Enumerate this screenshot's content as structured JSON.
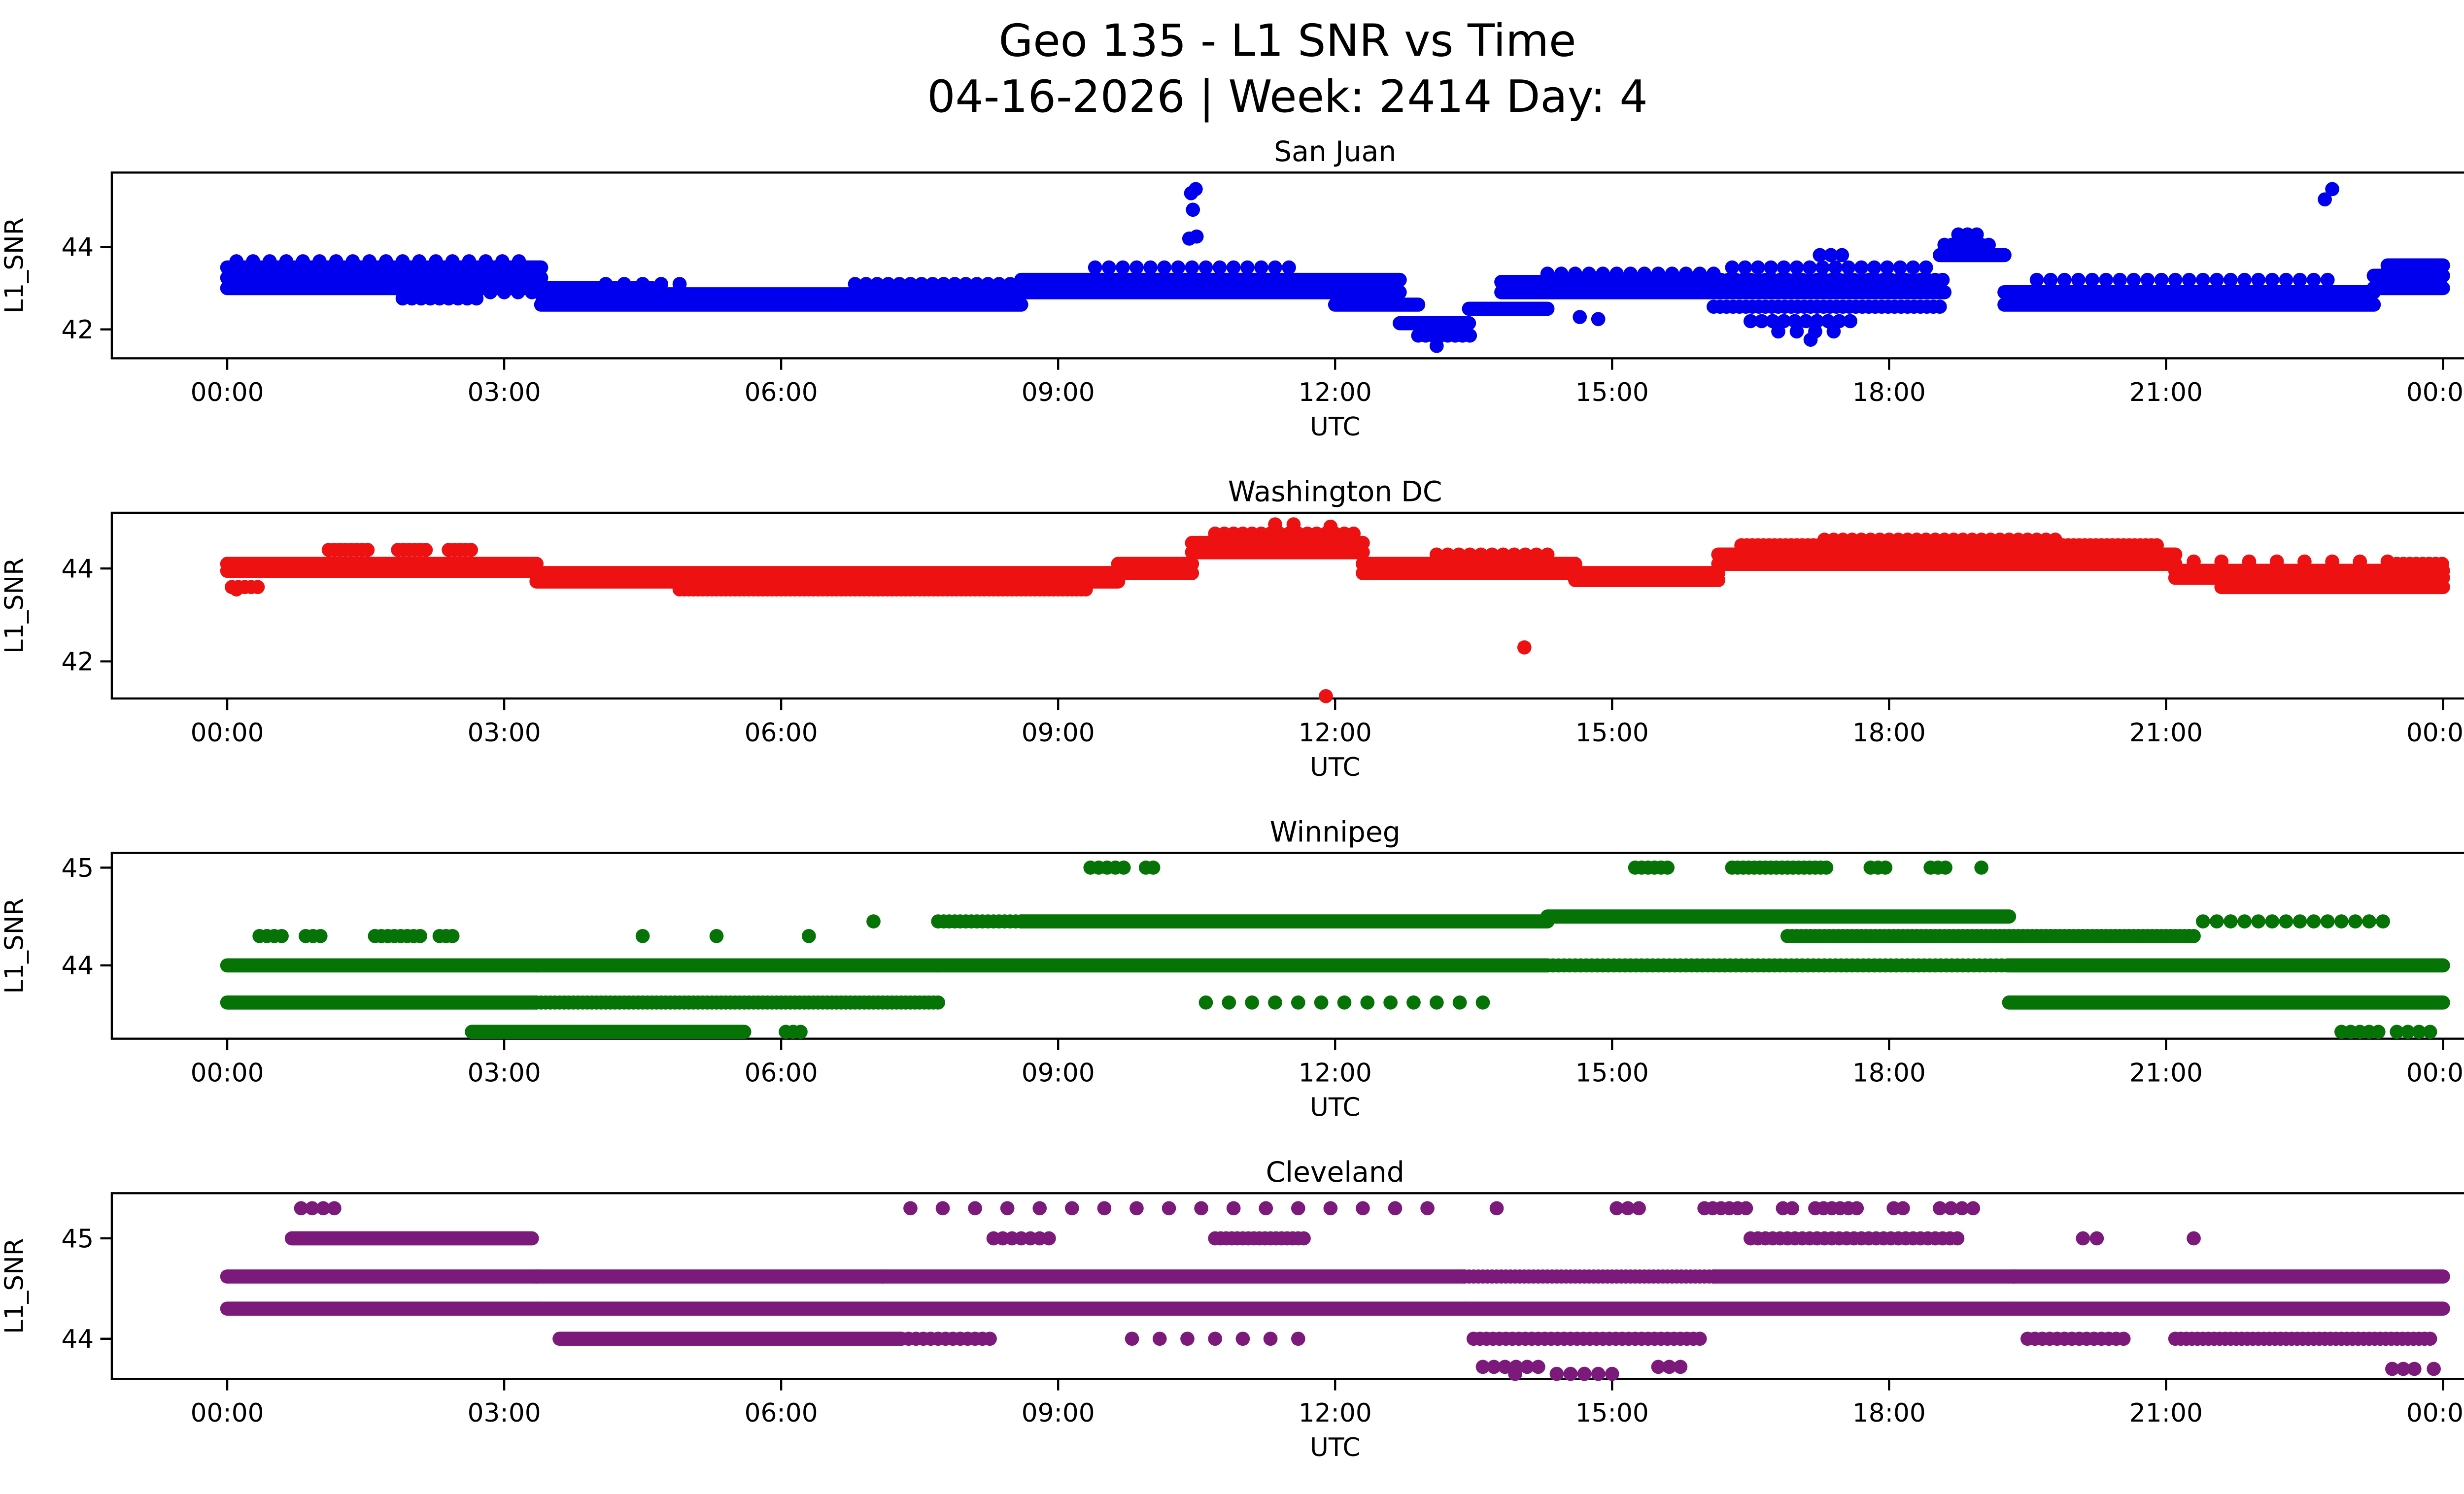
{
  "figure": {
    "title": "Geo 135 - L1 SNR vs Time",
    "subtitle": "04-16-2026 | Week: 2414 Day: 4"
  },
  "chart_data": [
    {
      "type": "scatter",
      "title": "San Juan",
      "color": "#0000ee",
      "xlabel": "UTC",
      "ylabel": "L1_SNR",
      "xlim": [
        -1.25,
        25.25
      ],
      "ylim": [
        41.3,
        45.8
      ],
      "yticks": [
        42,
        44
      ],
      "xticks": [
        0,
        3,
        6,
        9,
        12,
        15,
        18,
        21,
        24
      ],
      "xtick_labels": [
        "00:00",
        "03:00",
        "06:00",
        "09:00",
        "12:00",
        "15:00",
        "18:00",
        "21:00",
        "00:00"
      ],
      "segments": [
        [
          0.0,
          3.4,
          43.5
        ],
        [
          0.0,
          3.4,
          43.25
        ],
        [
          0.0,
          4.6,
          43.0
        ],
        [
          0.1,
          3.2,
          43.65,
          0.18
        ],
        [
          1.9,
          2.7,
          42.75,
          0.1
        ],
        [
          2.1,
          3.4,
          42.9,
          0.15
        ],
        [
          3.4,
          8.6,
          42.6
        ],
        [
          3.4,
          8.6,
          42.85
        ],
        [
          4.1,
          5.0,
          43.1,
          0.2
        ],
        [
          6.8,
          8.6,
          43.1,
          0.12
        ],
        [
          8.6,
          12.7,
          43.2
        ],
        [
          8.6,
          12.7,
          42.9
        ],
        [
          9.4,
          11.6,
          43.5,
          0.15
        ],
        [
          12.0,
          12.9,
          42.6
        ],
        [
          12.7,
          13.45,
          42.15
        ],
        [
          12.9,
          13.5,
          41.85,
          0.08
        ],
        [
          13.45,
          14.3,
          42.5
        ],
        [
          13.8,
          16.1,
          42.9
        ],
        [
          13.8,
          16.1,
          43.15
        ],
        [
          14.3,
          16.1,
          43.35,
          0.15
        ],
        [
          16.1,
          18.6,
          42.9
        ],
        [
          16.1,
          18.6,
          42.55,
          0.07
        ],
        [
          16.1,
          18.6,
          43.2,
          0.08
        ],
        [
          16.3,
          18.4,
          43.5,
          0.14
        ],
        [
          16.5,
          17.6,
          42.2,
          0.12
        ],
        [
          16.8,
          17.4,
          41.95,
          0.2
        ],
        [
          17.25,
          17.55,
          43.8,
          0.12
        ],
        [
          18.55,
          19.25,
          43.8
        ],
        [
          18.6,
          19.15,
          44.05,
          0.08
        ],
        [
          18.75,
          19.0,
          44.3,
          0.1
        ],
        [
          19.25,
          23.25,
          42.9
        ],
        [
          19.25,
          23.25,
          42.6
        ],
        [
          19.6,
          22.8,
          43.2,
          0.15
        ],
        [
          23.25,
          24.0,
          43.0
        ],
        [
          23.25,
          24.0,
          43.3
        ],
        [
          23.4,
          24.0,
          43.55
        ]
      ],
      "points": [
        [
          10.42,
          44.2
        ],
        [
          10.5,
          44.25
        ],
        [
          10.46,
          44.9
        ],
        [
          10.44,
          45.3
        ],
        [
          10.49,
          45.4
        ],
        [
          22.72,
          45.15
        ],
        [
          22.8,
          45.4
        ],
        [
          13.1,
          41.6
        ],
        [
          17.15,
          41.75
        ],
        [
          14.65,
          42.3
        ],
        [
          14.85,
          42.25
        ]
      ]
    },
    {
      "type": "scatter",
      "title": "Washington DC",
      "color": "#ee1111",
      "xlabel": "UTC",
      "ylabel": "L1_SNR",
      "xlim": [
        -1.25,
        25.25
      ],
      "ylim": [
        41.2,
        45.2
      ],
      "yticks": [
        42,
        44
      ],
      "xticks": [
        0,
        3,
        6,
        9,
        12,
        15,
        18,
        21,
        24
      ],
      "xtick_labels": [
        "00:00",
        "03:00",
        "06:00",
        "09:00",
        "12:00",
        "15:00",
        "18:00",
        "21:00",
        "00:00"
      ],
      "segments": [
        [
          0.0,
          3.35,
          44.1
        ],
        [
          0.0,
          3.35,
          43.95
        ],
        [
          0.05,
          0.35,
          43.6,
          0.07
        ],
        [
          1.1,
          1.55,
          44.4,
          0.06
        ],
        [
          1.85,
          2.2,
          44.4,
          0.06
        ],
        [
          2.4,
          2.65,
          44.4,
          0.06
        ],
        [
          3.35,
          9.65,
          43.9
        ],
        [
          3.35,
          9.65,
          43.72
        ],
        [
          4.9,
          9.3,
          43.55,
          0.05
        ],
        [
          9.65,
          10.45,
          44.1
        ],
        [
          9.65,
          10.45,
          43.9
        ],
        [
          10.45,
          12.3,
          44.55
        ],
        [
          10.45,
          12.3,
          44.35
        ],
        [
          10.7,
          12.2,
          44.75,
          0.1
        ],
        [
          12.3,
          14.6,
          44.1
        ],
        [
          12.3,
          14.6,
          43.9
        ],
        [
          13.1,
          14.4,
          44.3,
          0.12
        ],
        [
          14.6,
          16.15,
          43.9
        ],
        [
          14.6,
          16.15,
          43.75
        ],
        [
          16.15,
          21.1,
          44.3
        ],
        [
          16.15,
          21.1,
          44.1
        ],
        [
          16.4,
          20.9,
          44.5,
          0.06
        ],
        [
          17.3,
          19.8,
          44.62,
          0.1
        ],
        [
          21.1,
          24.0,
          43.95
        ],
        [
          21.1,
          24.0,
          43.8
        ],
        [
          21.6,
          24.0,
          43.6
        ],
        [
          21.3,
          23.5,
          44.15,
          0.3
        ],
        [
          23.5,
          24.0,
          44.1,
          0.07
        ]
      ],
      "points": [
        [
          11.35,
          44.95
        ],
        [
          11.55,
          44.95
        ],
        [
          11.95,
          44.9
        ],
        [
          11.9,
          41.25
        ],
        [
          14.05,
          42.3
        ],
        [
          0.1,
          43.55
        ]
      ]
    },
    {
      "type": "scatter",
      "title": "Winnipeg",
      "color": "#067306",
      "xlabel": "UTC",
      "ylabel": "L1_SNR",
      "xlim": [
        -1.25,
        25.25
      ],
      "ylim": [
        43.25,
        45.15
      ],
      "yticks": [
        44,
        45
      ],
      "xticks": [
        0,
        3,
        6,
        9,
        12,
        15,
        18,
        21,
        24
      ],
      "xtick_labels": [
        "00:00",
        "03:00",
        "06:00",
        "09:00",
        "12:00",
        "15:00",
        "18:00",
        "21:00",
        "00:00"
      ],
      "segments": [
        [
          0.0,
          3.35,
          44.0
        ],
        [
          0.0,
          3.35,
          43.62
        ],
        [
          0.35,
          0.6,
          44.3,
          0.08
        ],
        [
          0.85,
          1.05,
          44.3,
          0.08
        ],
        [
          1.6,
          2.1,
          44.3,
          0.07
        ],
        [
          2.3,
          2.45,
          44.3,
          0.07
        ],
        [
          2.65,
          5.6,
          43.32
        ],
        [
          3.35,
          7.7,
          44.0
        ],
        [
          3.35,
          7.7,
          43.62,
          0.05
        ],
        [
          6.05,
          6.25,
          43.32,
          0.08
        ],
        [
          7.7,
          14.3,
          44.0
        ],
        [
          7.7,
          8.6,
          44.45,
          0.06
        ],
        [
          8.6,
          14.3,
          44.45
        ],
        [
          9.35,
          9.75,
          45.0,
          0.09
        ],
        [
          9.95,
          10.1,
          45.0,
          0.08
        ],
        [
          10.6,
          13.6,
          43.62,
          0.25
        ],
        [
          14.3,
          19.3,
          44.5
        ],
        [
          14.3,
          19.3,
          44.0,
          0.06
        ],
        [
          15.25,
          15.65,
          45.0,
          0.07
        ],
        [
          16.3,
          17.35,
          45.0,
          0.06
        ],
        [
          17.8,
          18.0,
          45.0,
          0.08
        ],
        [
          18.45,
          18.65,
          45.0,
          0.08
        ],
        [
          16.9,
          21.3,
          44.3,
          0.05
        ],
        [
          19.3,
          24.0,
          44.0
        ],
        [
          19.3,
          24.0,
          43.62
        ],
        [
          21.4,
          23.4,
          44.45,
          0.15
        ],
        [
          22.9,
          23.3,
          43.32,
          0.1
        ],
        [
          23.5,
          23.9,
          43.32,
          0.12
        ]
      ],
      "points": [
        [
          4.5,
          44.3
        ],
        [
          5.3,
          44.3
        ],
        [
          6.3,
          44.3
        ],
        [
          7.0,
          44.45
        ],
        [
          19.0,
          45.0
        ]
      ]
    },
    {
      "type": "scatter",
      "title": "Cleveland",
      "color": "#7c1a7c",
      "xlabel": "UTC",
      "ylabel": "L1_SNR",
      "xlim": [
        -1.25,
        25.25
      ],
      "ylim": [
        43.6,
        45.45
      ],
      "yticks": [
        44,
        45
      ],
      "xticks": [
        0,
        3,
        6,
        9,
        12,
        15,
        18,
        21,
        24
      ],
      "xtick_labels": [
        "00:00",
        "03:00",
        "06:00",
        "09:00",
        "12:00",
        "15:00",
        "18:00",
        "21:00",
        "00:00"
      ],
      "segments": [
        [
          0.0,
          3.35,
          44.62
        ],
        [
          0.0,
          3.35,
          44.3
        ],
        [
          0.7,
          3.3,
          45.0
        ],
        [
          0.8,
          1.2,
          45.3,
          0.12
        ],
        [
          3.35,
          7.1,
          44.62
        ],
        [
          3.35,
          7.1,
          44.3
        ],
        [
          3.6,
          7.3,
          44.0
        ],
        [
          7.1,
          13.4,
          44.62
        ],
        [
          7.1,
          13.4,
          44.3
        ],
        [
          7.3,
          8.3,
          44.0,
          0.08
        ],
        [
          7.4,
          13.2,
          45.3,
          0.35
        ],
        [
          10.7,
          11.7,
          45.0,
          0.06
        ],
        [
          8.3,
          8.9,
          45.0,
          0.1
        ],
        [
          9.8,
          11.6,
          44.0,
          0.3
        ],
        [
          13.4,
          16.1,
          44.3
        ],
        [
          13.4,
          16.1,
          44.62,
          0.05
        ],
        [
          13.5,
          16.0,
          44.0,
          0.07
        ],
        [
          13.6,
          14.2,
          43.72,
          0.12
        ],
        [
          14.4,
          15.0,
          43.65,
          0.15
        ],
        [
          15.5,
          15.8,
          43.72,
          0.12
        ],
        [
          15.05,
          15.35,
          45.3,
          0.12
        ],
        [
          16.0,
          16.45,
          45.3,
          0.09
        ],
        [
          16.85,
          17.0,
          45.3,
          0.1
        ],
        [
          17.2,
          17.65,
          45.3,
          0.09
        ],
        [
          18.05,
          18.2,
          45.3,
          0.1
        ],
        [
          18.55,
          18.95,
          45.3,
          0.12
        ],
        [
          16.1,
          19.35,
          44.62
        ],
        [
          16.1,
          19.35,
          44.3
        ],
        [
          16.5,
          18.8,
          45.0,
          0.08
        ],
        [
          19.35,
          24.0,
          44.62
        ],
        [
          19.35,
          24.0,
          44.3
        ],
        [
          19.5,
          20.6,
          44.0,
          0.08
        ],
        [
          21.1,
          23.9,
          44.0,
          0.06
        ],
        [
          23.45,
          23.8,
          43.7,
          0.12
        ]
      ],
      "points": [
        [
          13.95,
          43.65
        ],
        [
          14.7,
          43.65
        ],
        [
          20.1,
          45.0
        ],
        [
          20.25,
          45.0
        ],
        [
          21.3,
          45.0
        ],
        [
          23.9,
          43.7
        ],
        [
          13.75,
          45.3
        ]
      ]
    }
  ]
}
